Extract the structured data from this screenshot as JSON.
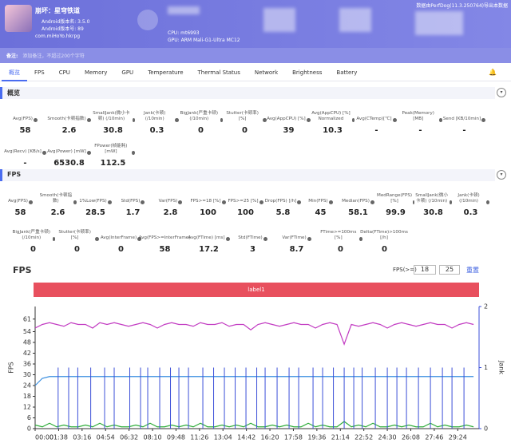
{
  "header": {
    "app_name": "崩坏：星穹铁道",
    "version_name": "Android版本名: 3.5.0",
    "version_code": "Android版本号: 89",
    "package": "com.miHoYo.hkrpg",
    "cpu": "CPU: mt6993",
    "gpu": "GPU: ARM Mali-G1-Ultra MC12",
    "export_note": "数据由PerfDog(11.3.250764)导出本数据"
  },
  "note": {
    "label": "备注:",
    "placeholder": "添加备注，不超过200个字符"
  },
  "tabs": [
    "概览",
    "FPS",
    "CPU",
    "Memory",
    "GPU",
    "Temperature",
    "Thermal Status",
    "Network",
    "Brightness",
    "Battery"
  ],
  "overview": {
    "title": "概览",
    "rows": [
      [
        {
          "label": "Avg(FPS)",
          "value": 58
        },
        {
          "label": "Smooth(卡顿指数)",
          "value": 2.6
        },
        {
          "label": "SmallJank(微小卡顿) (/10min)",
          "value": 30.8
        },
        {
          "label": "Jank(卡顿) (/10min)",
          "value": 0.3
        },
        {
          "label": "BigJank(严重卡顿) (/10min)",
          "value": 0
        },
        {
          "label": "Stutter(卡顿率) [%]",
          "value": 0
        },
        {
          "label": "Avg(AppCPU) [%]",
          "value": 39
        },
        {
          "label": "Avg(AppCPU) [%] Normalized",
          "value": 10.3
        },
        {
          "label": "Avg(CTemp)[℃]",
          "value": "-"
        },
        {
          "label": "Peak(Memory) [MB]",
          "value": "-"
        },
        {
          "label": "Send [KB/10min]",
          "value": "-"
        }
      ],
      [
        {
          "label": "Avg(Recv) [KB/s]",
          "value": "-"
        },
        {
          "label": "Avg(Power) [mW]",
          "value": 6530.8
        },
        {
          "label": "FPower(帧能耗) [mW]",
          "value": 112.5
        }
      ]
    ]
  },
  "fps": {
    "title": "FPS",
    "rows": [
      [
        {
          "label": "Avg(FPS)",
          "value": 58
        },
        {
          "label": "Smooth(卡顿指数)",
          "value": 2.6
        },
        {
          "label": "1%Low(FPS)",
          "value": 28.5
        },
        {
          "label": "Std(FPS)",
          "value": 1.7
        },
        {
          "label": "Var(FPS)",
          "value": 2.8
        },
        {
          "label": "FPS>=18 [%]",
          "value": 100
        },
        {
          "label": "FPS>=25 [%]",
          "value": 100
        },
        {
          "label": "Drop(FPS) [/h]",
          "value": 5.8
        },
        {
          "label": "Min(FPS)",
          "value": 45
        },
        {
          "label": "Median(FPS)",
          "value": 58.1
        },
        {
          "label": "MedRange(FPS)[%]",
          "value": 99.9
        },
        {
          "label": "SmallJank(微小卡顿) (/10min)",
          "value": 30.8
        },
        {
          "label": "Jank(卡顿) (/10min)",
          "value": 0.3
        }
      ],
      [
        {
          "label": "BigJank(严重卡顿) (/10min)",
          "value": 0
        },
        {
          "label": "Stutter(卡顿率) [%]",
          "value": 0
        },
        {
          "label": "Avg(InterFrame)",
          "value": 0
        },
        {
          "label": "Avg(FPS>=InterFrame)",
          "value": 58
        },
        {
          "label": "Avg(FTime) [ms]",
          "value": 17.2
        },
        {
          "label": "Std(FTime)",
          "value": 3
        },
        {
          "label": "Var(FTime)",
          "value": 8.7
        },
        {
          "label": "FTime>=100ms [%]",
          "value": 0
        },
        {
          "label": "Delta(FTime)>100ms [/h]",
          "value": 0
        }
      ]
    ]
  },
  "chart_panel": {
    "threshold_label": "FPS(>=)",
    "thresholds": [
      18,
      25
    ],
    "reset": "重置",
    "label": "label1"
  },
  "chart_data": {
    "type": "line",
    "title": "FPS",
    "y_label": "FPS",
    "y2_label": "Jank",
    "xlim": [
      0,
      1853
    ],
    "xticks": [
      {
        "value": 0,
        "label": "00:00"
      },
      {
        "value": 98,
        "label": "01:38"
      },
      {
        "value": 196,
        "label": "03:16"
      },
      {
        "value": 294,
        "label": "04:54"
      },
      {
        "value": 392,
        "label": "06:32"
      },
      {
        "value": 490,
        "label": "08:10"
      },
      {
        "value": 588,
        "label": "09:48"
      },
      {
        "value": 686,
        "label": "11:26"
      },
      {
        "value": 784,
        "label": "13:04"
      },
      {
        "value": 882,
        "label": "14:42"
      },
      {
        "value": 980,
        "label": "16:20"
      },
      {
        "value": 1078,
        "label": "17:58"
      },
      {
        "value": 1176,
        "label": "19:36"
      },
      {
        "value": 1274,
        "label": "21:14"
      },
      {
        "value": 1372,
        "label": "22:52"
      },
      {
        "value": 1470,
        "label": "24:30"
      },
      {
        "value": 1568,
        "label": "26:08"
      },
      {
        "value": 1666,
        "label": "27:46"
      },
      {
        "value": 1764,
        "label": "29:24"
      }
    ],
    "ylim": [
      0,
      68
    ],
    "yticks": [
      0,
      6,
      12,
      18,
      24,
      30,
      36,
      42,
      48,
      54,
      61
    ],
    "y2lim": [
      0,
      2
    ],
    "y2ticks": [
      0,
      1,
      2
    ],
    "series": [
      {
        "type": "line",
        "color": "#c23bc2",
        "x": [
          0,
          30,
          60,
          90,
          120,
          150,
          180,
          210,
          240,
          270,
          300,
          330,
          360,
          390,
          420,
          450,
          480,
          510,
          540,
          570,
          600,
          630,
          660,
          690,
          720,
          750,
          780,
          810,
          840,
          870,
          900,
          930,
          960,
          990,
          1020,
          1050,
          1080,
          1110,
          1140,
          1170,
          1200,
          1230,
          1260,
          1290,
          1320,
          1350,
          1380,
          1410,
          1440,
          1470,
          1500,
          1530,
          1560,
          1590,
          1620,
          1650,
          1680,
          1710,
          1740,
          1770,
          1800,
          1830
        ],
        "values": [
          56,
          58,
          59,
          58,
          57,
          59,
          58,
          58,
          56,
          59,
          58,
          59,
          58,
          57,
          58,
          59,
          58,
          56,
          58,
          59,
          58,
          58,
          57,
          59,
          58,
          58,
          59,
          57,
          58,
          58,
          55,
          58,
          59,
          58,
          57,
          58,
          59,
          58,
          58,
          56,
          58,
          59,
          58,
          47,
          58,
          57,
          58,
          59,
          58,
          56,
          58,
          59,
          58,
          57,
          58,
          59,
          58,
          58,
          56,
          58,
          59,
          58
        ]
      },
      {
        "type": "line",
        "color": "#2fae3a",
        "x": [
          0,
          30,
          60,
          90,
          120,
          150,
          180,
          210,
          240,
          270,
          300,
          330,
          360,
          390,
          420,
          450,
          480,
          510,
          540,
          570,
          600,
          630,
          660,
          690,
          720,
          750,
          780,
          810,
          840,
          870,
          900,
          930,
          960,
          990,
          1020,
          1050,
          1080,
          1110,
          1140,
          1170,
          1200,
          1230,
          1260,
          1290,
          1320,
          1350,
          1380,
          1410,
          1440,
          1470,
          1500,
          1530,
          1560,
          1590,
          1620,
          1650,
          1680,
          1710,
          1740,
          1770,
          1800,
          1830
        ],
        "values": [
          2,
          1,
          3,
          1,
          2,
          1,
          1,
          2,
          1,
          3,
          1,
          2,
          1,
          1,
          2,
          1,
          3,
          1,
          1,
          2,
          1,
          2,
          1,
          3,
          1,
          1,
          2,
          1,
          2,
          1,
          3,
          1,
          1,
          2,
          1,
          2,
          1,
          1,
          3,
          1,
          2,
          1,
          1,
          4,
          1,
          2,
          1,
          3,
          1,
          1,
          2,
          1,
          2,
          1,
          1,
          3,
          1,
          2,
          1,
          1,
          2,
          1
        ]
      },
      {
        "type": "line",
        "color": "#3a8ee0",
        "x": [
          0,
          30,
          60,
          1830
        ],
        "values": [
          24,
          28,
          29,
          29
        ]
      },
      {
        "type": "spike",
        "axis": "y2",
        "color": "#3b4fd8",
        "x": [
          96,
          140,
          178,
          232,
          290,
          330,
          395,
          440,
          470,
          520,
          565,
          600,
          640,
          700,
          745,
          790,
          835,
          880,
          925,
          960,
          1010,
          1060,
          1100,
          1160,
          1200,
          1245,
          1290,
          1330,
          1365,
          1420,
          1470,
          1510,
          1550,
          1600,
          1650,
          1700,
          1740,
          1790
        ],
        "values": [
          1,
          1,
          1,
          1,
          1,
          1,
          1,
          1,
          1,
          1,
          1,
          1,
          1,
          1,
          1,
          1,
          1,
          1,
          1,
          1,
          1,
          1,
          1,
          1,
          1,
          1,
          1,
          1,
          1,
          1,
          1,
          1,
          1,
          1,
          1,
          1,
          1,
          1
        ]
      }
    ]
  }
}
